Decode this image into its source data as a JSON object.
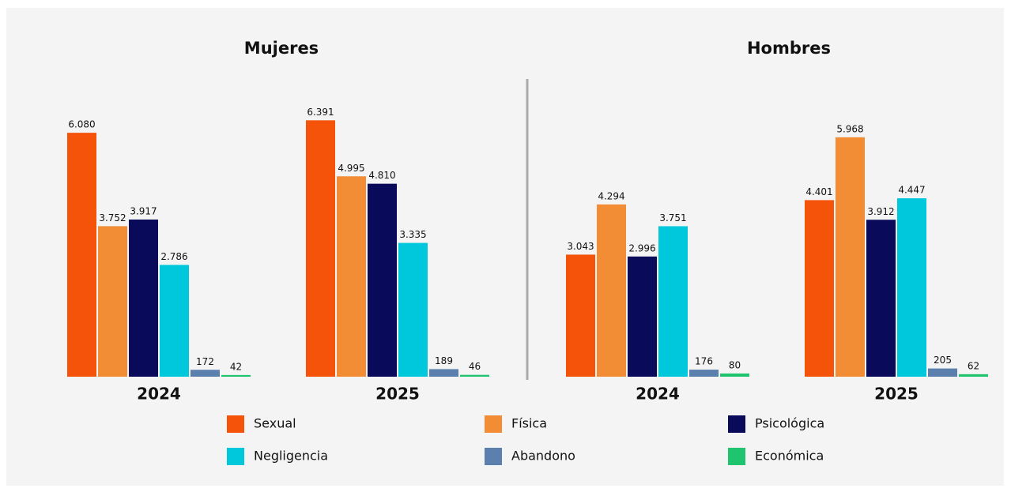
{
  "chart_data": {
    "type": "bar",
    "panel_titles": [
      "Mujeres",
      "Hombres"
    ],
    "categories": [
      "2024",
      "2025",
      "2024",
      "2025"
    ],
    "series": [
      {
        "name": "Sexual",
        "color": "#f5520a",
        "values": [
          6080,
          6391,
          3043,
          4401
        ],
        "value_labels": [
          "6.080",
          "6.391",
          "3.043",
          "4.401"
        ]
      },
      {
        "name": "Física",
        "color": "#f28c35",
        "values": [
          3752,
          4995,
          4294,
          5968
        ],
        "value_labels": [
          "3.752",
          "4.995",
          "4.294",
          "5.968"
        ]
      },
      {
        "name": "Psicológica",
        "color": "#0a0a5a",
        "values": [
          3917,
          4810,
          2996,
          3912
        ],
        "value_labels": [
          "3.917",
          "4.810",
          "2.996",
          "3.912"
        ]
      },
      {
        "name": "Negligencia",
        "color": "#00c8dc",
        "values": [
          2786,
          3335,
          3751,
          4447
        ],
        "value_labels": [
          "2.786",
          "3.335",
          "3.751",
          "4.447"
        ]
      },
      {
        "name": "Abandono",
        "color": "#5b80ad",
        "values": [
          172,
          189,
          176,
          205
        ]
      },
      {
        "name": "Económica",
        "color": "#1ec46e",
        "values": [
          42,
          46,
          80,
          62
        ]
      }
    ]
  }
}
